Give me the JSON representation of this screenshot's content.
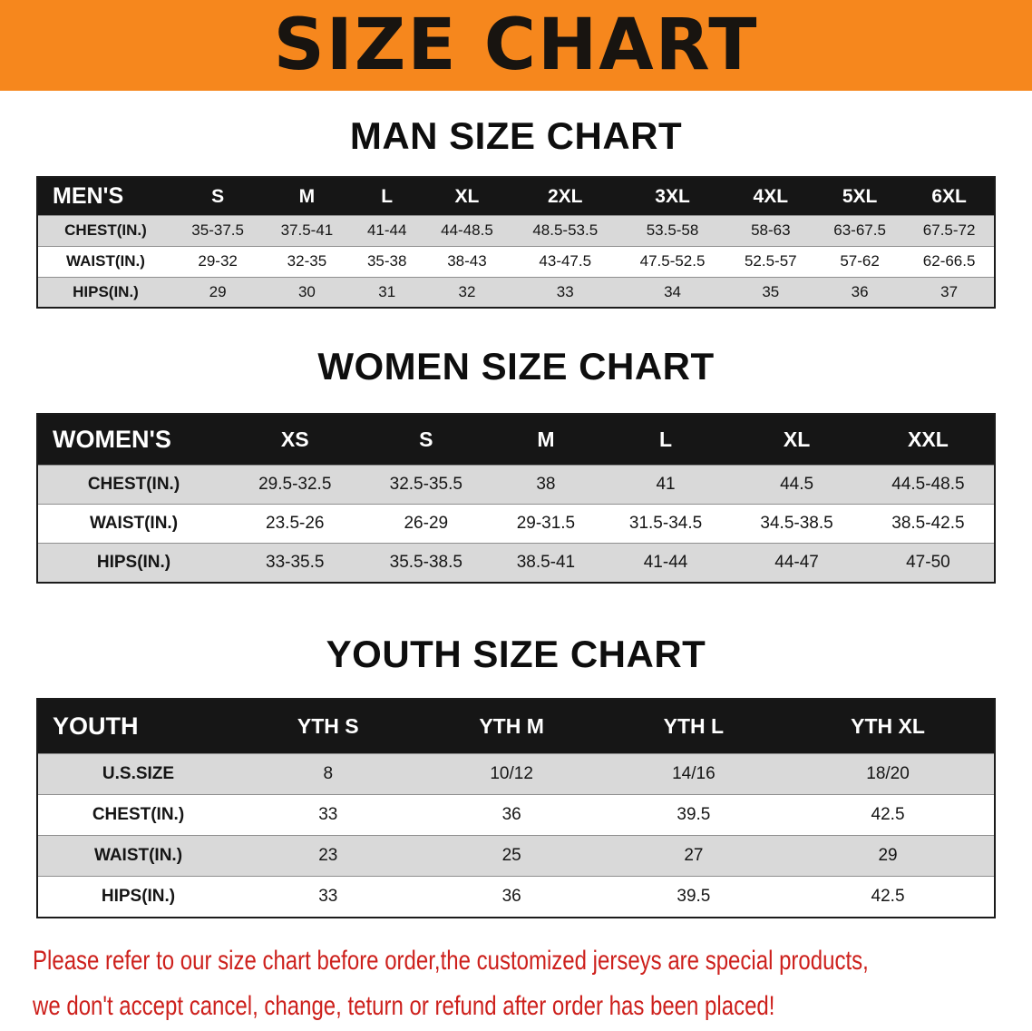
{
  "banner": {
    "title": "SIZE CHART"
  },
  "colors": {
    "banner_bg": "#f6871d",
    "table_header_bg": "#161616",
    "row_gray": "#d9d9d9",
    "disclaimer_red": "#cd201c"
  },
  "sections": [
    {
      "heading": "MAN SIZE CHART",
      "table": {
        "header": [
          "MEN'S",
          "S",
          "M",
          "L",
          "XL",
          "2XL",
          "3XL",
          "4XL",
          "5XL",
          "6XL"
        ],
        "rows": [
          [
            "CHEST(IN.)",
            "35-37.5",
            "37.5-41",
            "41-44",
            "44-48.5",
            "48.5-53.5",
            "53.5-58",
            "58-63",
            "63-67.5",
            "67.5-72"
          ],
          [
            "WAIST(IN.)",
            "29-32",
            "32-35",
            "35-38",
            "38-43",
            "43-47.5",
            "47.5-52.5",
            "52.5-57",
            "57-62",
            "62-66.5"
          ],
          [
            "HIPS(IN.)",
            "29",
            "30",
            "31",
            "32",
            "33",
            "34",
            "35",
            "36",
            "37"
          ]
        ]
      }
    },
    {
      "heading": "WOMEN SIZE CHART",
      "table": {
        "header": [
          "WOMEN'S",
          "XS",
          "S",
          "M",
          "L",
          "XL",
          "XXL"
        ],
        "rows": [
          [
            "CHEST(IN.)",
            "29.5-32.5",
            "32.5-35.5",
            "38",
            "41",
            "44.5",
            "44.5-48.5"
          ],
          [
            "WAIST(IN.)",
            "23.5-26",
            "26-29",
            "29-31.5",
            "31.5-34.5",
            "34.5-38.5",
            "38.5-42.5"
          ],
          [
            "HIPS(IN.)",
            "33-35.5",
            "35.5-38.5",
            "38.5-41",
            "41-44",
            "44-47",
            "47-50"
          ]
        ]
      }
    },
    {
      "heading": "YOUTH SIZE CHART",
      "table": {
        "header": [
          "YOUTH",
          "YTH S",
          "YTH M",
          "YTH L",
          "YTH XL"
        ],
        "rows": [
          [
            "U.S.SIZE",
            "8",
            "10/12",
            "14/16",
            "18/20"
          ],
          [
            "CHEST(IN.)",
            "33",
            "36",
            "39.5",
            "42.5"
          ],
          [
            "WAIST(IN.)",
            "23",
            "25",
            "27",
            "29"
          ],
          [
            "HIPS(IN.)",
            "33",
            "36",
            "39.5",
            "42.5"
          ]
        ]
      }
    }
  ],
  "disclaimer": {
    "line1": "Please refer to our size chart before order,the customized jerseys are special products,",
    "line2": "we don't accept cancel, change, teturn or refund after order has been placed!"
  }
}
